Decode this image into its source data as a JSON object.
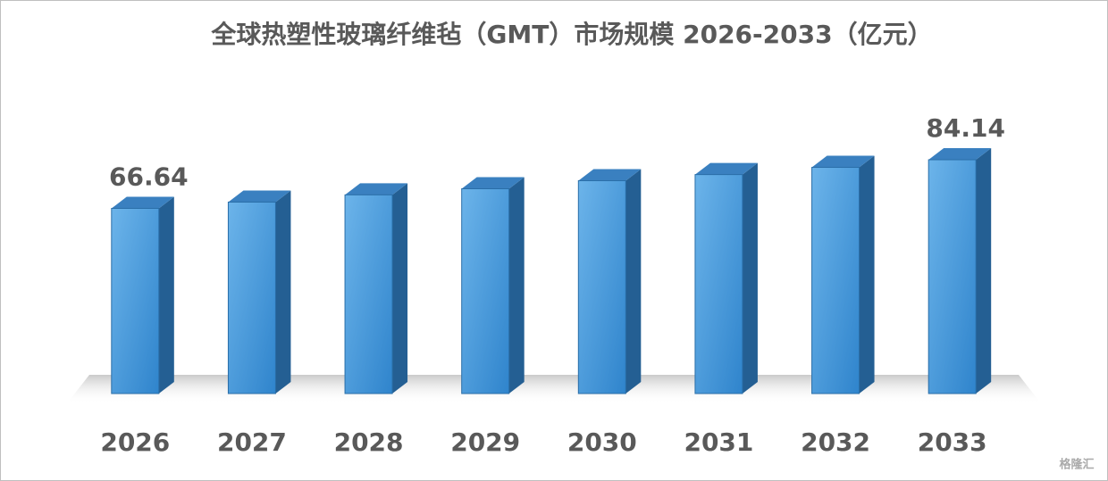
{
  "chart_data": {
    "type": "bar3d",
    "title": "全球热塑性玻璃纤维毡（GMT）市场规模 2026-2033（亿元）",
    "categories": [
      "2026",
      "2027",
      "2028",
      "2029",
      "2030",
      "2031",
      "2032",
      "2033"
    ],
    "values": [
      66.64,
      68.9,
      71.5,
      73.7,
      76.6,
      78.8,
      81.4,
      84.14
    ],
    "color": "#3f95d8"
  },
  "watermark": "格隆汇"
}
